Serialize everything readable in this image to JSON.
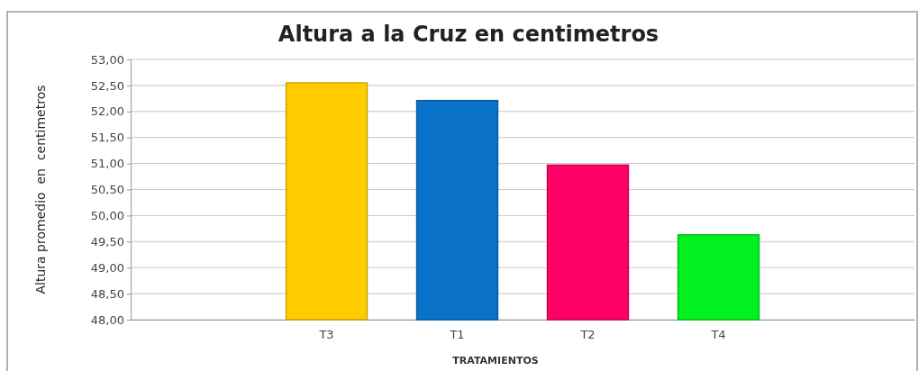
{
  "chart_data": {
    "type": "bar",
    "title": "Altura a la Cruz en centimetros",
    "xlabel": "TRATAMIENTOS",
    "ylabel": "Altura promedio  en  centimetros",
    "categories": [
      null,
      "T3",
      "T1",
      "T2",
      "T4",
      null
    ],
    "values": [
      null,
      52.55,
      52.21,
      50.97,
      49.63,
      null
    ],
    "colors": [
      null,
      "#ffcc00",
      "#0a72c8",
      "#ff0066",
      "#00f020",
      null
    ],
    "ylim": [
      48,
      53
    ],
    "yticks": [
      {
        "value": 48,
        "label": "48,00"
      },
      {
        "value": 48.5,
        "label": "48,50"
      },
      {
        "value": 49,
        "label": "49,00"
      },
      {
        "value": 49.5,
        "label": "49,50"
      },
      {
        "value": 50,
        "label": "50,00"
      },
      {
        "value": 50.5,
        "label": "50,50"
      },
      {
        "value": 51,
        "label": "51,00"
      },
      {
        "value": 51.5,
        "label": "51,50"
      },
      {
        "value": 52,
        "label": "52,00"
      },
      {
        "value": 52.5,
        "label": "52,50"
      },
      {
        "value": 53,
        "label": "53,00"
      }
    ],
    "grid": "y"
  }
}
